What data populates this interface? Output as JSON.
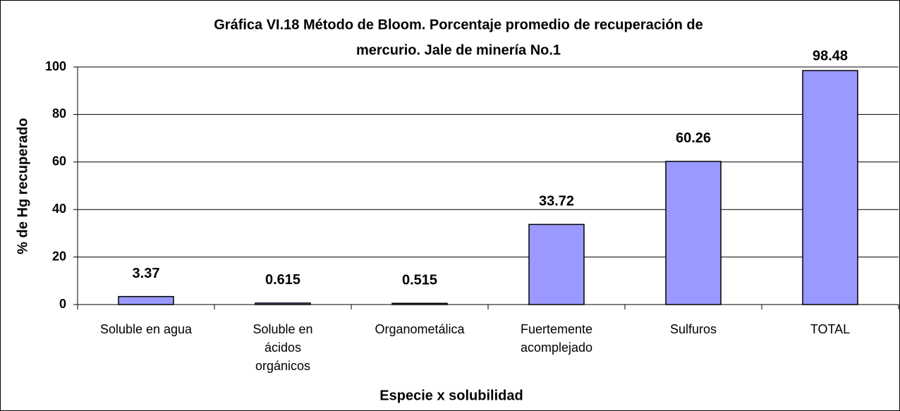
{
  "chart_data": {
    "type": "bar",
    "title": [
      "Gráfica VI.18 Método de Bloom. Porcentaje promedio de recuperación de",
      "mercurio. Jale de minería No.1"
    ],
    "x_label": "Especie x solubilidad",
    "y_label": "% de Hg recuperado",
    "categories": [
      "Soluble en agua",
      "Soluble en\nácidos\norgánicos",
      "Organometálica",
      "Fuertemente\nacomplejado",
      "Sulfuros",
      "TOTAL"
    ],
    "values": [
      3.37,
      0.615,
      0.515,
      33.72,
      60.26,
      98.48
    ],
    "color": "#9999ff",
    "ylim": [
      0,
      100
    ],
    "yticks": [
      0,
      20,
      40,
      60,
      80,
      100
    ],
    "grid": true
  }
}
